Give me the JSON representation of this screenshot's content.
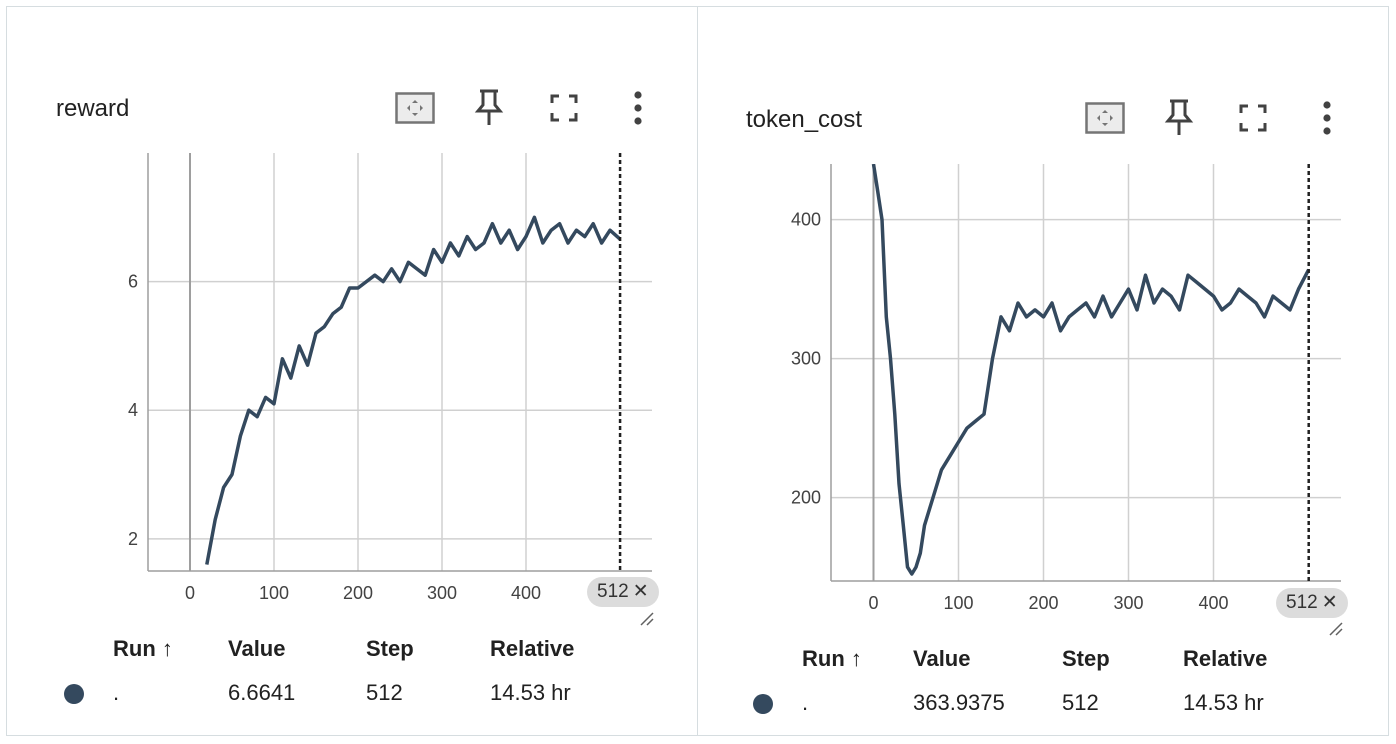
{
  "panels": [
    {
      "title": "reward",
      "color": "#34495e",
      "step_chip": "512",
      "table": {
        "headers": {
          "run": "Run ↑",
          "value": "Value",
          "step": "Step",
          "relative": "Relative"
        },
        "row": {
          "run": ".",
          "value": "6.6641",
          "step": "512",
          "relative": "14.53 hr"
        }
      },
      "chart_data": {
        "type": "line",
        "x_ticks": [
          "0",
          "100",
          "200",
          "300",
          "400"
        ],
        "y_ticks": [
          "2",
          "4",
          "6"
        ],
        "xlim": [
          -50,
          550
        ],
        "ylim": [
          1.5,
          8
        ],
        "cursor_step": 512,
        "series": [
          {
            "x": [
              20,
              30,
              40,
              50,
              60,
              70,
              80,
              90,
              100,
              110,
              120,
              130,
              140,
              150,
              160,
              170,
              180,
              190,
              200,
              210,
              220,
              230,
              240,
              250,
              260,
              270,
              280,
              290,
              300,
              310,
              320,
              330,
              340,
              350,
              360,
              370,
              380,
              390,
              400,
              410,
              420,
              430,
              440,
              450,
              460,
              470,
              480,
              490,
              500,
              512
            ],
            "y": [
              1.6,
              2.3,
              2.8,
              3.0,
              3.6,
              4.0,
              3.9,
              4.2,
              4.1,
              4.8,
              4.5,
              5.0,
              4.7,
              5.2,
              5.3,
              5.5,
              5.6,
              5.9,
              5.9,
              6.0,
              6.1,
              6.0,
              6.2,
              6.0,
              6.3,
              6.2,
              6.1,
              6.5,
              6.3,
              6.6,
              6.4,
              6.7,
              6.5,
              6.6,
              6.9,
              6.6,
              6.8,
              6.5,
              6.7,
              7.0,
              6.6,
              6.8,
              6.9,
              6.6,
              6.8,
              6.7,
              6.9,
              6.6,
              6.8,
              6.66
            ]
          }
        ]
      }
    },
    {
      "title": "token_cost",
      "color": "#34495e",
      "step_chip": "512",
      "table": {
        "headers": {
          "run": "Run ↑",
          "value": "Value",
          "step": "Step",
          "relative": "Relative"
        },
        "row": {
          "run": ".",
          "value": "363.9375",
          "step": "512",
          "relative": "14.53 hr"
        }
      },
      "chart_data": {
        "type": "line",
        "x_ticks": [
          "0",
          "100",
          "200",
          "300",
          "400"
        ],
        "y_ticks": [
          "200",
          "300",
          "400"
        ],
        "xlim": [
          -50,
          550
        ],
        "ylim": [
          140,
          440
        ],
        "cursor_step": 512,
        "series": [
          {
            "x": [
              0,
              5,
              10,
              15,
              20,
              25,
              30,
              35,
              40,
              45,
              50,
              55,
              60,
              70,
              80,
              90,
              100,
              110,
              120,
              130,
              140,
              150,
              160,
              170,
              180,
              190,
              200,
              210,
              220,
              230,
              240,
              250,
              260,
              270,
              280,
              290,
              300,
              310,
              320,
              330,
              340,
              350,
              360,
              370,
              380,
              390,
              400,
              410,
              420,
              430,
              440,
              450,
              460,
              470,
              480,
              490,
              500,
              512
            ],
            "y": [
              440,
              420,
              400,
              330,
              300,
              260,
              210,
              180,
              150,
              145,
              150,
              160,
              180,
              200,
              220,
              230,
              240,
              250,
              255,
              260,
              300,
              330,
              320,
              340,
              330,
              335,
              330,
              340,
              320,
              330,
              335,
              340,
              330,
              345,
              330,
              340,
              350,
              335,
              360,
              340,
              350,
              345,
              335,
              360,
              355,
              350,
              345,
              335,
              340,
              350,
              345,
              340,
              330,
              345,
              340,
              335,
              350,
              364
            ]
          }
        ]
      }
    }
  ]
}
